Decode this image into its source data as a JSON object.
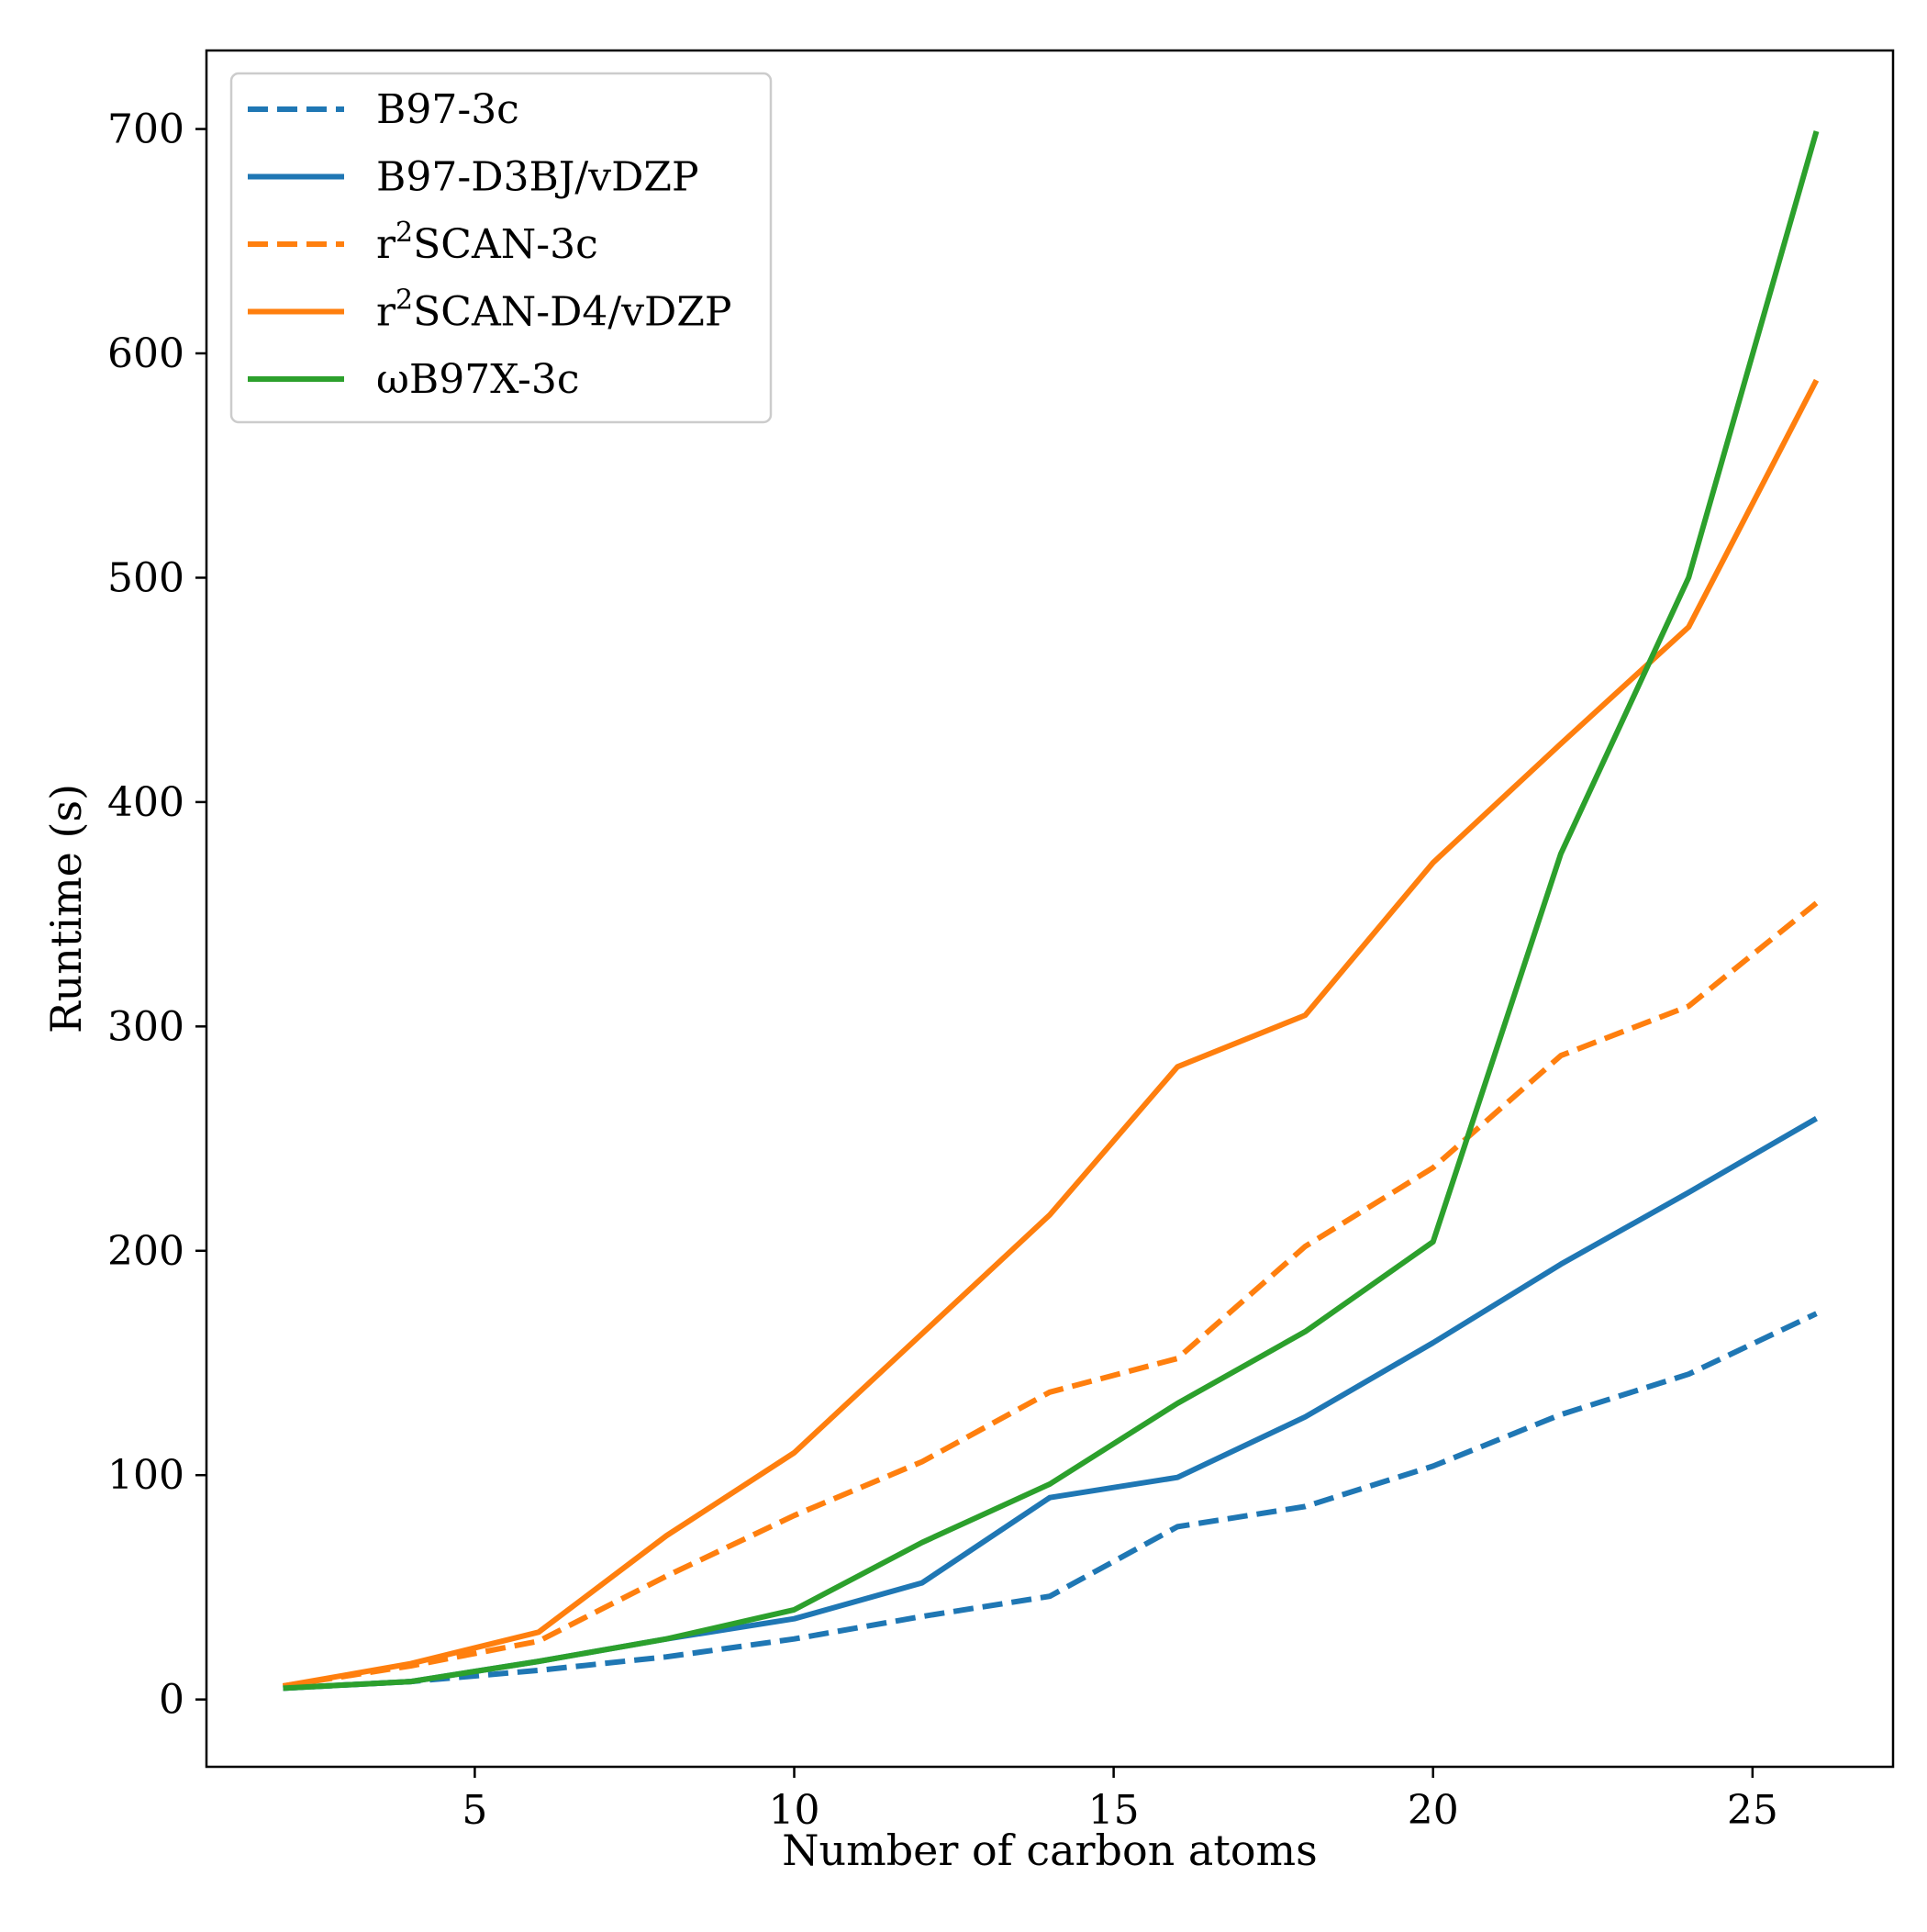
{
  "chart_data": {
    "type": "line",
    "title": "",
    "xlabel": "Number of carbon atoms",
    "ylabel": "Runtime (s)",
    "xlim": [
      0.8,
      27.2
    ],
    "ylim": [
      -30,
      735
    ],
    "xticks": [
      5,
      10,
      15,
      20,
      25
    ],
    "yticks": [
      0,
      100,
      200,
      300,
      400,
      500,
      600,
      700
    ],
    "grid": false,
    "legend_position": "top-left",
    "x": [
      2,
      4,
      6,
      8,
      10,
      12,
      14,
      16,
      18,
      20,
      22,
      24,
      26
    ],
    "series": [
      {
        "name": "B97-3c",
        "label_main": "B97-3c",
        "color": "#1f77b4",
        "style": "dashed",
        "values": [
          5,
          8,
          13,
          19,
          27,
          37,
          46,
          77,
          86,
          104,
          127,
          145,
          172
        ]
      },
      {
        "name": "B97-D3BJ/vDZP",
        "label_main": "B97-D3BJ/vDZP",
        "color": "#1f77b4",
        "style": "solid",
        "values": [
          5,
          8,
          17,
          27,
          36,
          52,
          90,
          99,
          126,
          159,
          194,
          226,
          259
        ]
      },
      {
        "name": "r2SCAN-3c",
        "label_main": "r",
        "label_sup": "2",
        "label_rest": "SCAN-3c",
        "color": "#ff7f0e",
        "style": "dashed",
        "values": [
          6,
          15,
          26,
          55,
          82,
          106,
          137,
          152,
          202,
          237,
          287,
          309,
          355
        ]
      },
      {
        "name": "r2SCAN-D4/vDZP",
        "label_main": "r",
        "label_sup": "2",
        "label_rest": "SCAN-D4/vDZP",
        "color": "#ff7f0e",
        "style": "solid",
        "values": [
          6,
          16,
          30,
          73,
          110,
          163,
          216,
          282,
          305,
          373,
          426,
          478,
          588
        ]
      },
      {
        "name": "ωB97X-3c",
        "label_main": "ωB97X-3c",
        "color": "#2ca02c",
        "style": "solid",
        "values": [
          5,
          8,
          17,
          27,
          40,
          70,
          96,
          132,
          164,
          204,
          377,
          500,
          699
        ]
      }
    ]
  }
}
